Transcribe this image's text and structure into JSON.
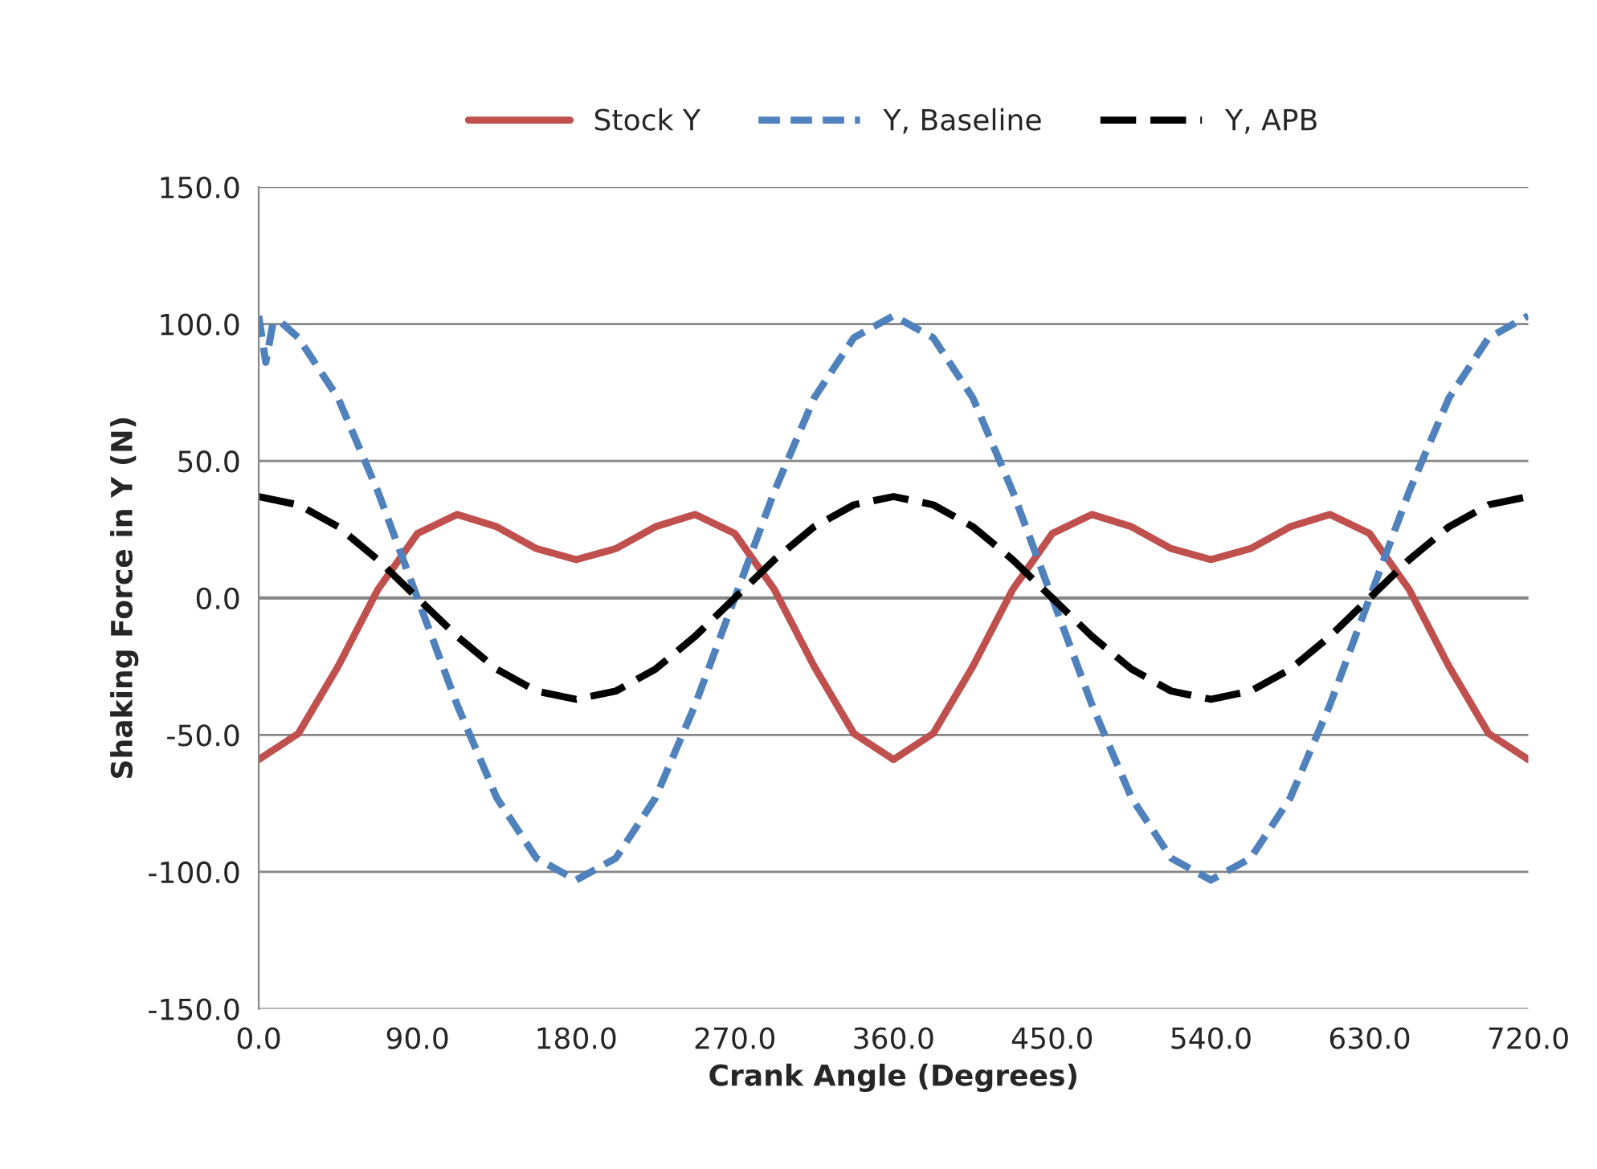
{
  "chart_data": {
    "type": "line",
    "xlabel": "Crank Angle (Degrees)",
    "ylabel": "Shaking Force in Y (N)",
    "x": [
      0,
      22.5,
      45,
      67.5,
      90,
      112.5,
      135,
      157.5,
      180,
      202.5,
      225,
      247.5,
      270,
      292.5,
      315,
      337.5,
      360,
      382.5,
      405,
      427.5,
      450,
      472.5,
      495,
      517.5,
      540,
      562.5,
      585,
      607.5,
      630,
      652.5,
      675,
      697.5,
      720
    ],
    "series": [
      {
        "name": "Stock Y",
        "color": "#c0504d",
        "line_style": "solid",
        "values": [
          -59,
          -49.5,
          -25,
          3,
          23.5,
          30.5,
          26,
          18,
          14,
          18,
          26,
          30.5,
          23.5,
          3,
          -25,
          -49.5,
          -59,
          -49.5,
          -25,
          3,
          23.5,
          30.5,
          26,
          18,
          14,
          18,
          26,
          30.5,
          23.5,
          3,
          -25,
          -49.5,
          -59
        ]
      },
      {
        "name": "Y, Baseline",
        "color": "#4f81bd",
        "line_style": "dashed",
        "x": [
          0,
          4,
          8,
          12,
          22.5,
          45,
          67.5,
          90,
          112.5,
          135,
          157.5,
          180,
          202.5,
          225,
          247.5,
          270,
          292.5,
          315,
          337.5,
          360,
          382.5,
          405,
          427.5,
          450,
          472.5,
          495,
          517.5,
          540,
          562.5,
          585,
          607.5,
          630,
          652.5,
          675,
          697.5,
          720
        ],
        "values": [
          103,
          86,
          100,
          101,
          95,
          73,
          39,
          0,
          -39,
          -73,
          -95,
          -103,
          -95,
          -73,
          -39,
          0,
          39,
          73,
          95,
          103,
          95,
          73,
          39,
          0,
          -39,
          -73,
          -95,
          -103,
          -95,
          -73,
          -39,
          0,
          39,
          73,
          95,
          103
        ]
      },
      {
        "name": "Y, APB",
        "color": "#000000",
        "line_style": "dashed",
        "values": [
          37,
          34,
          26,
          14,
          0,
          -14,
          -26,
          -34,
          -37,
          -34,
          -26,
          -14,
          0,
          14,
          26,
          34,
          37,
          34,
          26,
          14,
          0,
          -14,
          -26,
          -34,
          -37,
          -34,
          -26,
          -14,
          0,
          14,
          26,
          34,
          37
        ]
      }
    ],
    "xlim": [
      0,
      720
    ],
    "ylim": [
      -150,
      150
    ],
    "xticks": [
      {
        "value": 0,
        "label": "0.0"
      },
      {
        "value": 90,
        "label": "90.0"
      },
      {
        "value": 180,
        "label": "180.0"
      },
      {
        "value": 270,
        "label": "270.0"
      },
      {
        "value": 360,
        "label": "360.0"
      },
      {
        "value": 450,
        "label": "450.0"
      },
      {
        "value": 540,
        "label": "540.0"
      },
      {
        "value": 630,
        "label": "630.0"
      },
      {
        "value": 720,
        "label": "720.0"
      }
    ],
    "yticks": [
      {
        "value": -150,
        "label": "-150.0"
      },
      {
        "value": -100,
        "label": "-100.0"
      },
      {
        "value": -50,
        "label": "-50.0"
      },
      {
        "value": 0,
        "label": "0.0"
      },
      {
        "value": 50,
        "label": "50.0"
      },
      {
        "value": 100,
        "label": "100.0"
      },
      {
        "value": 150,
        "label": "150.0"
      }
    ],
    "ref_lines": [
      {
        "axis": "y",
        "value": 0,
        "color": "#868686"
      }
    ],
    "grid": "y",
    "legend": "top"
  }
}
